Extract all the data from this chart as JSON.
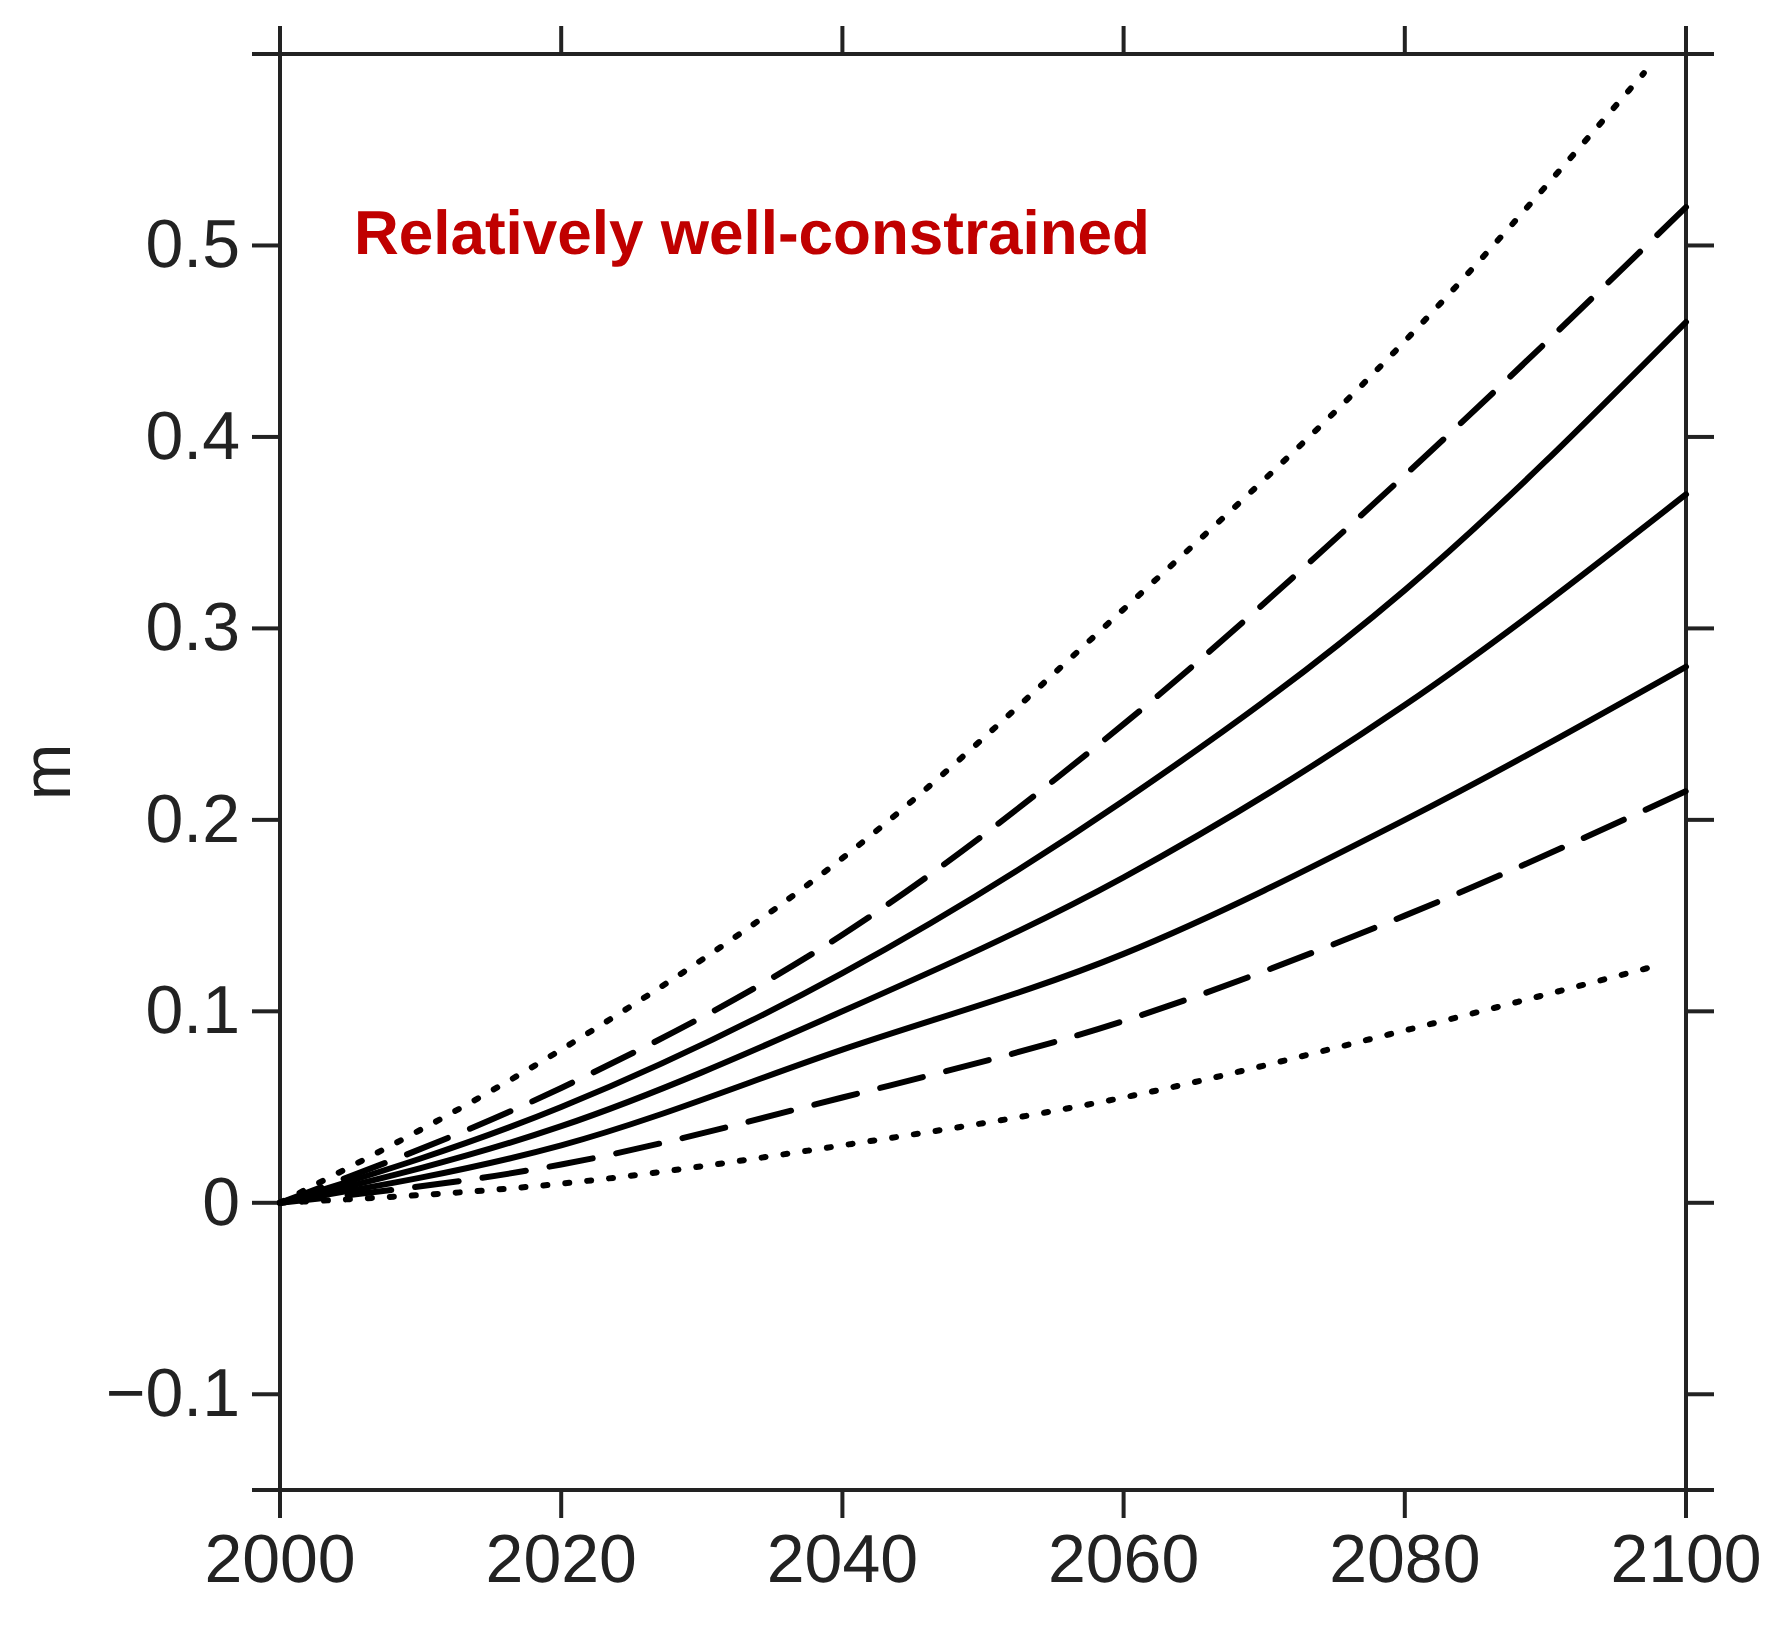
{
  "chart_data": {
    "type": "line",
    "ylabel": "m",
    "annotations": [
      "Relatively well-constrained"
    ],
    "x": [
      2000,
      2020,
      2040,
      2060,
      2080,
      2100
    ],
    "series": [
      {
        "color": "#000000",
        "line_style": "dotted",
        "x": [
          2000,
          2020,
          2040,
          2060,
          2080,
          2097
        ],
        "values": [
          0,
          0.08,
          0.18,
          0.31,
          0.45,
          0.59
        ]
      },
      {
        "color": "#000000",
        "line_style": "dashed",
        "values": [
          0,
          0.06,
          0.14,
          0.25,
          0.38,
          0.52
        ]
      },
      {
        "color": "#000000",
        "line_style": "solid",
        "values": [
          0,
          0.05,
          0.12,
          0.21,
          0.32,
          0.46
        ]
      },
      {
        "color": "#000000",
        "line_style": "solid",
        "values": [
          0,
          0.04,
          0.1,
          0.17,
          0.26,
          0.37
        ]
      },
      {
        "color": "#000000",
        "line_style": "solid",
        "values": [
          0,
          0.03,
          0.08,
          0.13,
          0.2,
          0.28
        ]
      },
      {
        "color": "#000000",
        "line_style": "dashed",
        "values": [
          0,
          0.02,
          0.055,
          0.095,
          0.15,
          0.215
        ]
      },
      {
        "color": "#000000",
        "line_style": "dotted",
        "x": [
          2000,
          2020,
          2040,
          2060,
          2080,
          2098
        ],
        "values": [
          0,
          0.01,
          0.03,
          0.055,
          0.09,
          0.124
        ]
      }
    ],
    "xlim": [
      2000,
      2100
    ],
    "xticks": [
      2000,
      2020,
      2040,
      2060,
      2080,
      2100
    ],
    "ylim": [
      -0.15,
      0.6
    ],
    "yticks": [
      {
        "value": -0.1,
        "label": "−0.1"
      },
      0,
      0.1,
      0.2,
      0.3,
      0.4,
      0.5
    ],
    "grid": false
  }
}
